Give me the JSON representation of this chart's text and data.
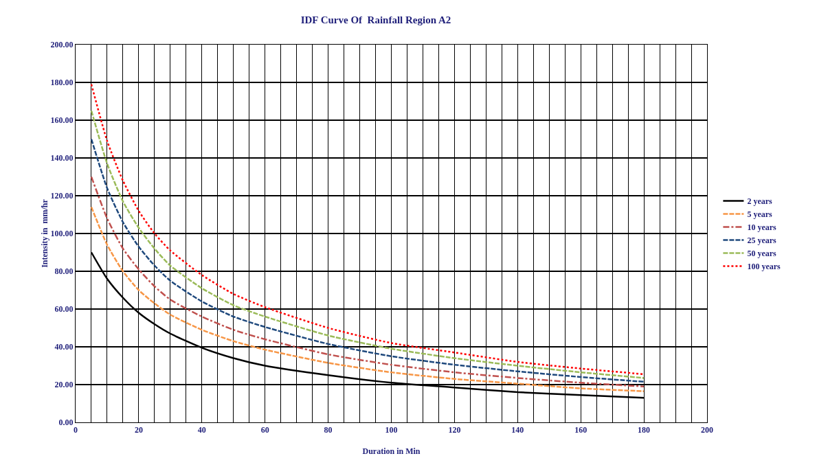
{
  "chart_data": {
    "type": "line",
    "title": "IDF Curve Of  Rainfall Region A2",
    "xlabel": "Duration in Min",
    "ylabel": "Intensity in  mm/hr",
    "x": [
      5,
      10,
      15,
      20,
      25,
      30,
      40,
      50,
      60,
      80,
      100,
      120,
      140,
      160,
      180
    ],
    "series": [
      {
        "name": "2 years",
        "color": "#000000",
        "line_style": "solid",
        "values": [
          90,
          76,
          66,
          58,
          52,
          47,
          39.5,
          34,
          30,
          25,
          21,
          18.5,
          16,
          14.5,
          13
        ]
      },
      {
        "name": "5 years",
        "color": "#f79646",
        "line_style": "dashed",
        "values": [
          114,
          94,
          80,
          70,
          63,
          57,
          49,
          43,
          38.5,
          31.5,
          26.5,
          23,
          20.5,
          18,
          16.5
        ]
      },
      {
        "name": "10 years",
        "color": "#c0504d",
        "line_style": "dashdot",
        "values": [
          130,
          108,
          92,
          81,
          72,
          65,
          56,
          49,
          44,
          36,
          30.5,
          26.5,
          23.5,
          21,
          19
        ]
      },
      {
        "name": "25 years",
        "color": "#1f497d",
        "line_style": "dashed",
        "values": [
          150,
          124,
          106,
          93,
          83,
          75,
          64,
          56,
          50.5,
          41.5,
          35,
          30.5,
          27,
          24,
          21.5
        ]
      },
      {
        "name": "50 years",
        "color": "#9bbb59",
        "line_style": "dashed",
        "values": [
          165,
          137,
          117,
          103,
          92,
          83,
          71,
          62,
          56,
          46,
          39,
          34,
          30,
          26.5,
          23.5
        ]
      },
      {
        "name": "100 years",
        "color": "#ff0000",
        "line_style": "dotted",
        "values": [
          179,
          149,
          128,
          112,
          100,
          91,
          78,
          68,
          61,
          50,
          42,
          37,
          32,
          28.5,
          25.5
        ]
      }
    ],
    "xlim": [
      0,
      200
    ],
    "xticks": [
      0,
      {
        "value": 5,
        "label": null
      },
      {
        "value": 10,
        "label": null
      },
      {
        "value": 15,
        "label": null
      },
      20,
      {
        "value": 25,
        "label": null
      },
      {
        "value": 30,
        "label": null
      },
      {
        "value": 35,
        "label": null
      },
      40,
      {
        "value": 45,
        "label": null
      },
      {
        "value": 50,
        "label": null
      },
      {
        "value": 55,
        "label": null
      },
      60,
      {
        "value": 65,
        "label": null
      },
      {
        "value": 70,
        "label": null
      },
      {
        "value": 75,
        "label": null
      },
      80,
      {
        "value": 85,
        "label": null
      },
      {
        "value": 90,
        "label": null
      },
      {
        "value": 95,
        "label": null
      },
      100,
      {
        "value": 105,
        "label": null
      },
      {
        "value": 110,
        "label": null
      },
      {
        "value": 115,
        "label": null
      },
      120,
      {
        "value": 125,
        "label": null
      },
      {
        "value": 130,
        "label": null
      },
      {
        "value": 135,
        "label": null
      },
      140,
      {
        "value": 145,
        "label": null
      },
      {
        "value": 150,
        "label": null
      },
      {
        "value": 155,
        "label": null
      },
      160,
      {
        "value": 165,
        "label": null
      },
      {
        "value": 170,
        "label": null
      },
      {
        "value": 175,
        "label": null
      },
      180,
      {
        "value": 185,
        "label": null
      },
      {
        "value": 190,
        "label": null
      },
      {
        "value": 195,
        "label": null
      },
      200
    ],
    "ylim": [
      0,
      200
    ],
    "yticks": [
      {
        "value": 0,
        "label": "0.00"
      },
      {
        "value": 20,
        "label": "20.00"
      },
      {
        "value": 40,
        "label": "40.00"
      },
      {
        "value": 60,
        "label": "60.00"
      },
      {
        "value": 80,
        "label": "80.00"
      },
      {
        "value": 100,
        "label": "100.00"
      },
      {
        "value": 120,
        "label": "120.00"
      },
      {
        "value": 140,
        "label": "140.00"
      },
      {
        "value": 160,
        "label": "160.00"
      },
      {
        "value": 180,
        "label": "180.00"
      },
      {
        "value": 200,
        "label": "200.00"
      }
    ],
    "grid": true,
    "legend": "right"
  }
}
